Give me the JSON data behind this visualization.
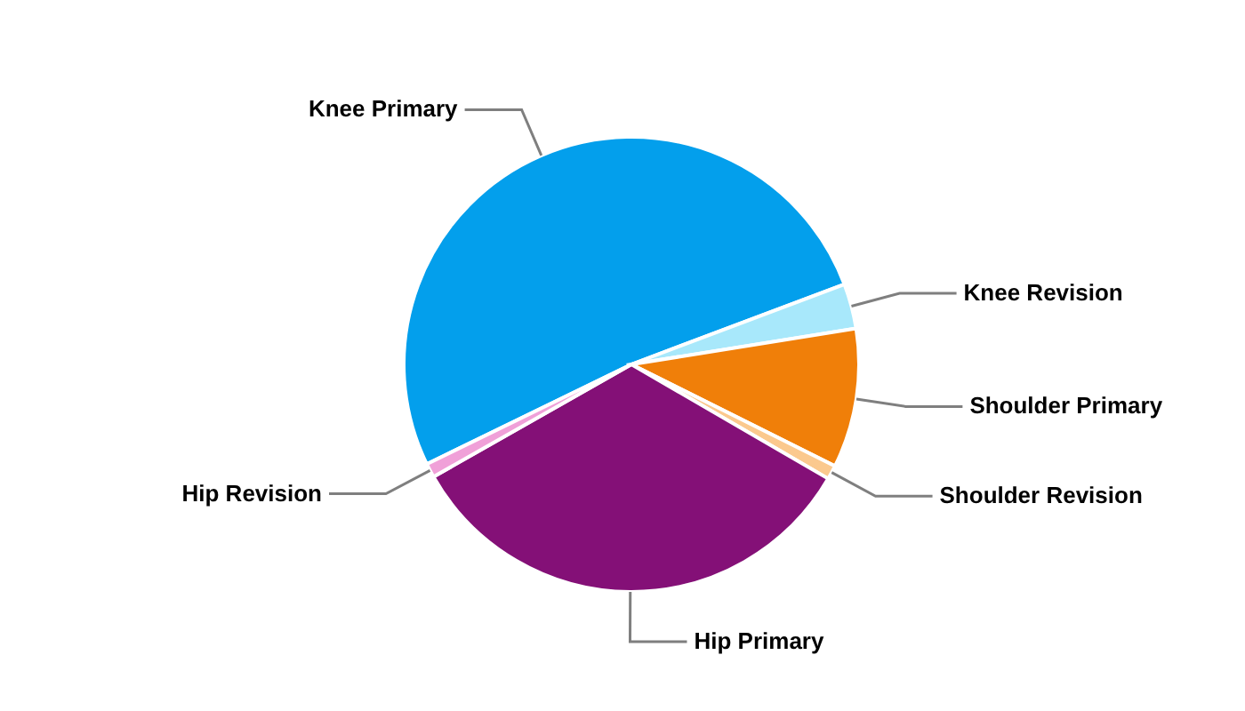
{
  "chart_data": {
    "type": "pie",
    "categories": [
      "Knee Primary",
      "Knee Revision",
      "Shoulder Primary",
      "Shoulder Revision",
      "Hip Primary",
      "Hip Revision"
    ],
    "values": [
      51.5,
      3.2,
      9.9,
      1.0,
      33.4,
      1.0
    ],
    "colors": [
      "#039fec",
      "#a8e8fb",
      "#f07f09",
      "#fbc98e",
      "#841077",
      "#f0a0d8"
    ],
    "legend": false
  }
}
